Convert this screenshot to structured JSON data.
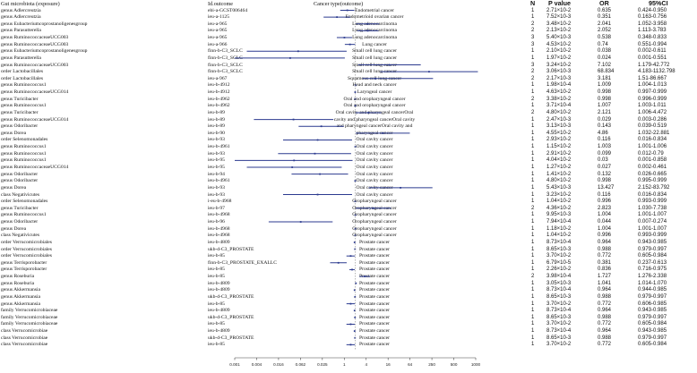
{
  "headers": {
    "exposure": "Gut microbiota (exposure)",
    "outcome_id": "Id.outcome",
    "outcome": "Cancer type(outcome)",
    "n": "N",
    "p": "P value",
    "or": "OR",
    "ci": "95%CI"
  },
  "chart_data": {
    "type": "forest",
    "x_scale": "log",
    "x_ticks": [
      "0.001",
      "0.004",
      "0.016",
      "0.062",
      "0.025",
      "1",
      "4",
      "16",
      "64",
      "250",
      "500",
      "1000"
    ],
    "reference_line": 1,
    "line_color": "#2b3a8f",
    "rows": [
      {
        "exposure": "genus Adlercreutzia",
        "id": "ebi-a-GCST006464",
        "outcome": "Endometrial cancer",
        "n": "1",
        "p": "2.71×10-2",
        "or": "0.635",
        "ci": "0.424-0.950",
        "or_v": 0.635,
        "lo": 0.424,
        "hi": 0.95
      },
      {
        "exposure": "genus Adlercreutzia",
        "id": "ieu-a-1125",
        "outcome": "Endometrioid ovarian cancer",
        "n": "1",
        "p": "7.52×10-3",
        "or": "0.351",
        "ci": "0.163-0.756",
        "or_v": 0.351,
        "lo": 0.163,
        "hi": 0.756
      },
      {
        "exposure": "genus Eubacteriumcoprostanoligenesgroup",
        "id": "ieu-a-965",
        "outcome": "Lung adenocarcinoma",
        "n": "2",
        "p": "3.48×10-2",
        "or": "2.041",
        "ci": "1.052-3.958",
        "or_v": 2.041,
        "lo": 1.052,
        "hi": 3.958
      },
      {
        "exposure": "genus Parasutterella",
        "id": "ieu-a-965",
        "outcome": "Lung adenocarcinoma",
        "n": "2",
        "p": "2.13×10-2",
        "or": "2.052",
        "ci": "1.113-3.783",
        "or_v": 2.052,
        "lo": 1.113,
        "hi": 3.783
      },
      {
        "exposure": "genus RuminococcaceaeUCG003",
        "id": "ieu-a-965",
        "outcome": "Lung adenocarcinoma",
        "n": "3",
        "p": "5.40×10-3",
        "or": "0.538",
        "ci": "0.348-0.833",
        "or_v": 0.538,
        "lo": 0.348,
        "hi": 0.833
      },
      {
        "exposure": "genus RuminococcaceaeUCG003",
        "id": "ieu-a-966",
        "outcome": "Lung cancer",
        "n": "3",
        "p": "4.53×10-2",
        "or": "0.74",
        "ci": "0.551-0.994",
        "or_v": 0.74,
        "lo": 0.551,
        "hi": 0.994
      },
      {
        "exposure": "genus Eubacteriumcoprostanoligenesgroup",
        "id": "finn-b-C3_SCLC",
        "outcome": "Small cell lung cancer",
        "n": "1",
        "p": "2.10×10-2",
        "or": "0.038",
        "ci": "0.002-0.611",
        "or_v": 0.038,
        "lo": 0.002,
        "hi": 0.611
      },
      {
        "exposure": "genus Parasutterella",
        "id": "finn-b-C3_SCLC",
        "outcome": "Small cell lung cancer",
        "n": "1",
        "p": "1.97×10-2",
        "or": "0.024",
        "ci": "0.001-0.551",
        "or_v": 0.024,
        "lo": 0.001,
        "hi": 0.551
      },
      {
        "exposure": "genus RuminococcaceaeUCG003",
        "id": "finn-b-C3_SCLC",
        "outcome": "Small cell lung cancer",
        "n": "3",
        "p": "3.24×10-2",
        "or": "7.102",
        "ci": "1.179-42.772",
        "or_v": 7.102,
        "lo": 1.179,
        "hi": 42.772
      },
      {
        "exposure": "order Lactobacillales",
        "id": "finn-b-C3_SCLC",
        "outcome": "Small cell lung cancer",
        "n": "2",
        "p": "3.06×10-3",
        "or": "68.834",
        "ci": "4.183-1132.798",
        "or_v": 68.834,
        "lo": 4.183,
        "hi": 1132.798
      },
      {
        "exposure": "order Lactobacillales",
        "id": "ieu-a-967",
        "outcome": "Squamous cell lung cancer",
        "n": "2",
        "p": "2.17×10-3",
        "or": "3.181",
        "ci": "1.51-86.667",
        "or_v": 3.181,
        "lo": 1.51,
        "hi": 86.667
      },
      {
        "exposure": "genus Ruminococcus1",
        "id": "ieu-b-4912",
        "outcome": "Head and neck cancer",
        "n": "1",
        "p": "1.98×10-4",
        "or": "1.009",
        "ci": "1.004-1.013",
        "or_v": 1.009,
        "lo": 1.004,
        "hi": 1.013
      },
      {
        "exposure": "genus RuminococcaceaeUCG014",
        "id": "ieu-b-4912",
        "outcome": "Laryngeal cancer",
        "n": "1",
        "p": "4.63×10-2",
        "or": "0.998",
        "ci": "0.997-0.999",
        "or_v": 0.998,
        "lo": 0.997,
        "hi": 0.999
      },
      {
        "exposure": "genus Turicibacter",
        "id": "ieu-b-4962",
        "outcome": "Oral and oropharyngeal cancer",
        "n": "2",
        "p": "3.38×10-2",
        "or": "0.998",
        "ci": "0.996-0.999",
        "or_v": 0.998,
        "lo": 0.996,
        "hi": 0.999
      },
      {
        "exposure": "genus Ruminococcus1",
        "id": "ieu-b-4962",
        "outcome": "Oral and oropharyngeal cancer",
        "n": "1",
        "p": "3.71×10-4",
        "or": "1.007",
        "ci": "1.003-1.011",
        "or_v": 1.007,
        "lo": 1.003,
        "hi": 1.011
      },
      {
        "exposure": "genus Turicibacter",
        "id": "ieu-b-89",
        "outcome": "Oral cavity and pharyngeal cancerOral",
        "n": "2",
        "p": "4.80×10-2",
        "or": "2.121",
        "ci": "1.006-4.472",
        "or_v": 2.121,
        "lo": 1.006,
        "hi": 4.472
      },
      {
        "exposure": "genus RuminococcaceaeUCG014",
        "id": "ieu-b-89",
        "outcome": "cavity and pharyngeal cancerOral cavity",
        "n": "1",
        "p": "2.47×10-3",
        "or": "0.029",
        "ci": "0.003-0.286",
        "or_v": 0.029,
        "lo": 0.003,
        "hi": 0.286
      },
      {
        "exposure": "genus Odoribacter",
        "id": "ieu-b-89",
        "outcome": "and pharyngeal cancerOral cavity and",
        "n": "1",
        "p": "3.13×10-3",
        "or": "0.143",
        "ci": "0.039-0.519",
        "or_v": 0.143,
        "lo": 0.039,
        "hi": 0.519
      },
      {
        "exposure": "genus Dorea",
        "id": "ieu-b-90",
        "outcome": "pharyngeal cancer",
        "n": "1",
        "p": "4.55×10-2",
        "or": "4.86",
        "ci": "1.032-22.881",
        "or_v": 4.86,
        "lo": 1.032,
        "hi": 22.881
      },
      {
        "exposure": "order Selenomonadales",
        "id": "ieu-b-93",
        "outcome": "Oral cavity cancer",
        "n": "1",
        "p": "2.93×10-2",
        "or": "0.116",
        "ci": "0.016-0.834",
        "or_v": 0.116,
        "lo": 0.016,
        "hi": 0.834
      },
      {
        "exposure": "genus Ruminococcus1",
        "id": "ieu-b-4961",
        "outcome": "Oral cavity cancer",
        "n": "1",
        "p": "1.15×10-2",
        "or": "1.003",
        "ci": "1.001-1.006",
        "or_v": 1.003,
        "lo": 1.001,
        "hi": 1.006
      },
      {
        "exposure": "genus Ruminococcus1",
        "id": "ieu-b-93",
        "outcome": "Oral cavity cancer",
        "n": "1",
        "p": "2.91×10-2",
        "or": "0.099",
        "ci": "0.012-0.79",
        "or_v": 0.099,
        "lo": 0.012,
        "hi": 0.79
      },
      {
        "exposure": "genus Ruminococcus1",
        "id": "ieu-b-95",
        "outcome": "Oral cavity cancer",
        "n": "1",
        "p": "4.04×10-2",
        "or": "0.03",
        "ci": "0.001-0.858",
        "or_v": 0.03,
        "lo": 0.001,
        "hi": 0.858
      },
      {
        "exposure": "genus RuminococcaceaeUCG014",
        "id": "ieu-b-95",
        "outcome": "Oral cavity cancer",
        "n": "1",
        "p": "1.27×10-2",
        "or": "0.027",
        "ci": "0.002-0.461",
        "or_v": 0.027,
        "lo": 0.002,
        "hi": 0.461
      },
      {
        "exposure": "genus Odoribacter",
        "id": "ieu-b-94",
        "outcome": "Oral cavity cancer",
        "n": "1",
        "p": "1.41×10-2",
        "or": "0.132",
        "ci": "0.026-0.665",
        "or_v": 0.132,
        "lo": 0.026,
        "hi": 0.665
      },
      {
        "exposure": "genus Odoribacter",
        "id": "ieu-b-4961",
        "outcome": "Oral cavity cancer",
        "n": "1",
        "p": "4.80×10-2",
        "or": "0.998",
        "ci": "0.995-0.999",
        "or_v": 0.998,
        "lo": 0.995,
        "hi": 0.999
      },
      {
        "exposure": "genus Dorea",
        "id": "ieu-b-93",
        "outcome": "Oral cavity cancer",
        "n": "1",
        "p": "5.43×10-3",
        "or": "13.427",
        "ci": "2.152-83.792",
        "or_v": 13.427,
        "lo": 2.152,
        "hi": 83.792
      },
      {
        "exposure": "class Negativicutes",
        "id": "ieu-b-93",
        "outcome": "Oral cavity cancer",
        "n": "1",
        "p": "3.23×10-2",
        "or": "0.116",
        "ci": "0.016-0.834",
        "or_v": 0.116,
        "lo": 0.016,
        "hi": 0.834
      },
      {
        "exposure": "order Selenomonadales",
        "id": "i-eu-b-4968",
        "outcome": "Oropharyngeal cancer",
        "n": "1",
        "p": "1.04×10-2",
        "or": "0.996",
        "ci": "0.993-0.999",
        "or_v": 0.996,
        "lo": 0.993,
        "hi": 0.999
      },
      {
        "exposure": "genus Turicibacter",
        "id": "ieu-b-97",
        "outcome": "Oropharyngeal cancer",
        "n": "2",
        "p": "4.36×10-2",
        "or": "2.823",
        "ci": "1.030-7.738",
        "or_v": 2.823,
        "lo": 1.03,
        "hi": 7.738
      },
      {
        "exposure": "genus Ruminococcus1",
        "id": "ieu-b-4968",
        "outcome": "Oropharyngeal cancer",
        "n": "1",
        "p": "9.95×10-3",
        "or": "1.004",
        "ci": "1.001-1.007",
        "or_v": 1.004,
        "lo": 1.001,
        "hi": 1.007
      },
      {
        "exposure": "genus Odoribacter",
        "id": "ieu-b-96",
        "outcome": "Oropharyngeal cancer",
        "n": "1",
        "p": "7.94×10-4",
        "or": "0.044",
        "ci": "0.007-0.274",
        "or_v": 0.044,
        "lo": 0.007,
        "hi": 0.274
      },
      {
        "exposure": "genus Dorea",
        "id": "ieu-b-4968",
        "outcome": "Oropharyngeal cancer",
        "n": "1",
        "p": "1.18×10-2",
        "or": "1.004",
        "ci": "1.001-1.007",
        "or_v": 1.004,
        "lo": 1.001,
        "hi": 1.007
      },
      {
        "exposure": "class Negativicutes",
        "id": "ieu-b-4968",
        "outcome": "Oropharyngeal cancer",
        "n": "1",
        "p": "1.04×10-2",
        "or": "0.996",
        "ci": "0.993-0.999",
        "or_v": 0.996,
        "lo": 0.993,
        "hi": 0.999
      },
      {
        "exposure": "order Verrucomicrobiales",
        "id": "ieu-b-4809",
        "outcome": "Prostate cancer",
        "n": "1",
        "p": "8.73×10-4",
        "or": "0.964",
        "ci": "0.943-0.985",
        "or_v": 0.964,
        "lo": 0.943,
        "hi": 0.985
      },
      {
        "exposure": "order Verrucomicrobiales",
        "id": "ukb-d-C3_PROSTATE",
        "outcome": "Prostate cancer",
        "n": "1",
        "p": "8.65×10-3",
        "or": "0.988",
        "ci": "0.979-0.997",
        "or_v": 0.988,
        "lo": 0.979,
        "hi": 0.997
      },
      {
        "exposure": "order Verrucomicrobiales",
        "id": "ieu-b-85",
        "outcome": "Prostate cancer",
        "n": "1",
        "p": "3.70×10-2",
        "or": "0.772",
        "ci": "0.605-0.984",
        "or_v": 0.772,
        "lo": 0.605,
        "hi": 0.984
      },
      {
        "exposure": "genus Terrisporobacter",
        "id": "finn-b-C3_PROSTATE_EXALLC",
        "outcome": "Prostate cancer",
        "n": "1",
        "p": "6.79×10-5",
        "or": "0.381",
        "ci": "0.237-0.613",
        "or_v": 0.381,
        "lo": 0.237,
        "hi": 0.613
      },
      {
        "exposure": "genus Terrisporobacter",
        "id": "ieu-b-85",
        "outcome": "Prostate cancer",
        "n": "1",
        "p": "2.26×10-2",
        "or": "0.836",
        "ci": "0.716-0.975",
        "or_v": 0.836,
        "lo": 0.716,
        "hi": 0.975
      },
      {
        "exposure": "genus Roseburia",
        "id": "ieu-b-85",
        "outcome": "Prostate cancer",
        "n": "2",
        "p": "3.98×10-4",
        "or": "1.727",
        "ci": "1.276-2.338",
        "or_v": 1.727,
        "lo": 1.276,
        "hi": 2.338
      },
      {
        "exposure": "genus Roseburia",
        "id": "ieu-b-4809",
        "outcome": "Prostate cancer",
        "n": "1",
        "p": "3.05×10-3",
        "or": "1.041",
        "ci": "1.014-1.070",
        "or_v": 1.041,
        "lo": 1.014,
        "hi": 1.07
      },
      {
        "exposure": "genus Akkermansia",
        "id": "ieu-b-4809",
        "outcome": "Prostate cancer",
        "n": "1",
        "p": "8.73×10-4",
        "or": "0.964",
        "ci": "0.944-0.985",
        "or_v": 0.964,
        "lo": 0.944,
        "hi": 0.985
      },
      {
        "exposure": "genus Akkermansia",
        "id": "ukb-d-C3_PROSTATE",
        "outcome": "Prostate cancer",
        "n": "1",
        "p": "8.65×10-3",
        "or": "0.988",
        "ci": "0.979-0.997",
        "or_v": 0.988,
        "lo": 0.979,
        "hi": 0.997
      },
      {
        "exposure": "genus Akkermansia",
        "id": "ieu-b-85",
        "outcome": "Prostate cancer",
        "n": "1",
        "p": "3.70×10-2",
        "or": "0.772",
        "ci": "0.606-0.985",
        "or_v": 0.772,
        "lo": 0.606,
        "hi": 0.985
      },
      {
        "exposure": "family Verrucomicrobiaceae",
        "id": "ieu-b-4809",
        "outcome": "Prostate cancer",
        "n": "1",
        "p": "8.73×10-4",
        "or": "0.964",
        "ci": "0.943-0.985",
        "or_v": 0.964,
        "lo": 0.943,
        "hi": 0.985
      },
      {
        "exposure": "family Verrucomicrobiaceae",
        "id": "ukb-d-C3_PROSTATE",
        "outcome": "Prostate cancer",
        "n": "1",
        "p": "8.65×10-3",
        "or": "0.988",
        "ci": "0.979-0.997",
        "or_v": 0.988,
        "lo": 0.979,
        "hi": 0.997
      },
      {
        "exposure": "family Verrucomicrobiaceae",
        "id": "ieu-b-85",
        "outcome": "Prostate cancer",
        "n": "1",
        "p": "3.70×10-2",
        "or": "0.772",
        "ci": "0.605-0.984",
        "or_v": 0.772,
        "lo": 0.605,
        "hi": 0.984
      },
      {
        "exposure": "class Verrucomicrobiae",
        "id": "ieu-b-4809",
        "outcome": "Prostate cancer",
        "n": "1",
        "p": "8.73×10-4",
        "or": "0.964",
        "ci": "0.943-0.985",
        "or_v": 0.964,
        "lo": 0.943,
        "hi": 0.985
      },
      {
        "exposure": "class Verrucomicrobiae",
        "id": "ukb-d-C3_PROSTATE",
        "outcome": "Prostate cancer",
        "n": "1",
        "p": "8.65×10-3",
        "or": "0.988",
        "ci": "0.979-0.997",
        "or_v": 0.988,
        "lo": 0.979,
        "hi": 0.997
      },
      {
        "exposure": "class Verrucomicrobiae",
        "id": "ieu-b-85",
        "outcome": "Prostate cancer",
        "n": "1",
        "p": "3.70×10-2",
        "or": "0.772",
        "ci": "0.605-0.984",
        "or_v": 0.772,
        "lo": 0.605,
        "hi": 0.984
      }
    ]
  }
}
